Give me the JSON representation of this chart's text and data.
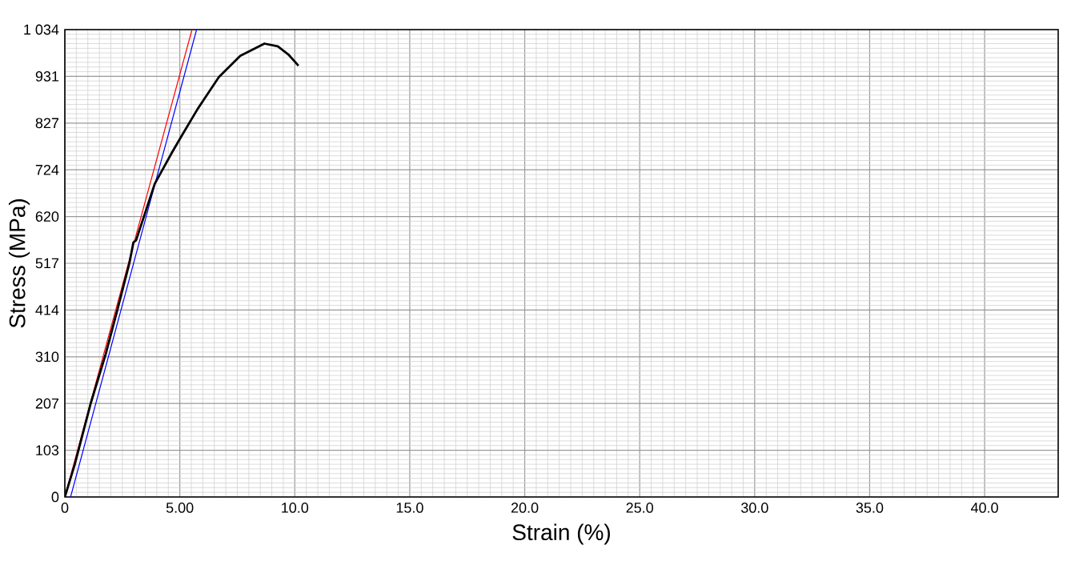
{
  "chart_data": {
    "type": "line",
    "xlabel": "Strain (%)",
    "ylabel": "Stress (MPa)",
    "xlim": [
      0,
      43.2
    ],
    "ylim": [
      0,
      1034
    ],
    "xticks": [
      {
        "value": 0,
        "label": "0"
      },
      {
        "value": 5,
        "label": "5.00"
      },
      {
        "value": 10,
        "label": "10.0"
      },
      {
        "value": 15,
        "label": "15.0"
      },
      {
        "value": 20,
        "label": "20.0"
      },
      {
        "value": 25,
        "label": "25.0"
      },
      {
        "value": 30,
        "label": "30.0"
      },
      {
        "value": 35,
        "label": "35.0"
      },
      {
        "value": 40,
        "label": "40.0"
      }
    ],
    "yticks": [
      0,
      {
        "value": 103.4,
        "label": "103"
      },
      {
        "value": 206.8,
        "label": "207"
      },
      {
        "value": 310.2,
        "label": "310"
      },
      {
        "value": 413.6,
        "label": "414"
      },
      {
        "value": 517,
        "label": "517"
      },
      {
        "value": 620.4,
        "label": "620"
      },
      {
        "value": 723.8,
        "label": "724"
      },
      {
        "value": 827.2,
        "label": "827"
      },
      {
        "value": 930.6,
        "label": "931"
      },
      {
        "value": 1034,
        "label": "1 034"
      }
    ],
    "grid": true,
    "marker": "none",
    "line_style": "solid",
    "series": [
      {
        "color": "#ff0000",
        "x": [
          0,
          5.53
        ],
        "values": [
          0,
          1034
        ]
      },
      {
        "color": "#0000ff",
        "x": [
          0.25,
          5.73
        ],
        "values": [
          0,
          1034
        ]
      },
      {
        "color": "#000000",
        "x": [
          0,
          0.43,
          1.13,
          1.77,
          2.29,
          2.81,
          2.98,
          3.1,
          3.91,
          4.67,
          5.08,
          5.77,
          6.7,
          7.63,
          8.68,
          9.26,
          9.72,
          10.16
        ],
        "values": [
          0,
          72,
          208,
          315,
          415,
          518,
          563,
          568,
          693,
          763,
          799,
          858,
          929,
          976,
          1003,
          997,
          979,
          954
        ]
      }
    ]
  }
}
